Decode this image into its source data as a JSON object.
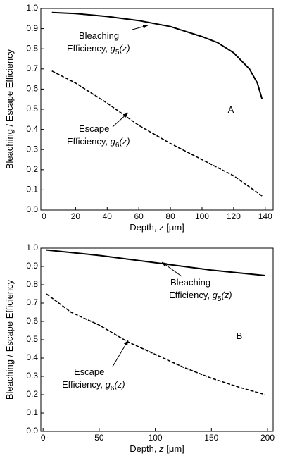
{
  "chart_data": [
    {
      "type": "line",
      "panel_label": "A",
      "x_label": [
        "Depth, ",
        "z",
        " [μm]"
      ],
      "y_label": "Bleaching / Escape Efficiency",
      "xlim": [
        -2,
        145
      ],
      "ylim": [
        0,
        1
      ],
      "xticks": [
        0,
        20,
        40,
        60,
        80,
        100,
        120,
        140
      ],
      "yticks": [
        {
          "value": 0,
          "label": "0.0"
        },
        0.1,
        0.2,
        0.3,
        0.4,
        0.5,
        0.6,
        0.7,
        0.8,
        0.9,
        {
          "value": 1,
          "label": "1.0"
        }
      ],
      "series": [
        {
          "annotation": [
            "Bleaching",
            "Efficiency, ",
            "g",
            "5",
            "(z)"
          ],
          "color": "#000000",
          "dash": "solid",
          "x": [
            5,
            20,
            40,
            60,
            80,
            100,
            110,
            120,
            130,
            135,
            138
          ],
          "values": [
            0.98,
            0.975,
            0.96,
            0.94,
            0.91,
            0.86,
            0.83,
            0.78,
            0.7,
            0.63,
            0.55
          ]
        },
        {
          "annotation": [
            "Escape",
            "Efficiency, ",
            "g",
            "6",
            "(z)"
          ],
          "color": "#000000",
          "dash": "dashed",
          "x": [
            5,
            20,
            40,
            60,
            80,
            100,
            120,
            138
          ],
          "values": [
            0.69,
            0.63,
            0.53,
            0.42,
            0.33,
            0.25,
            0.17,
            0.07
          ]
        }
      ]
    },
    {
      "type": "line",
      "panel_label": "B",
      "x_label": [
        "Depth, ",
        "z",
        " [μm]"
      ],
      "y_label": "Bleaching / Escape Efficiency",
      "xlim": [
        -2,
        205
      ],
      "ylim": [
        0,
        1
      ],
      "xticks": [
        0,
        50,
        100,
        150,
        200
      ],
      "yticks": [
        {
          "value": 0,
          "label": "0.0"
        },
        0.1,
        0.2,
        0.3,
        0.4,
        0.5,
        0.6,
        0.7,
        0.8,
        0.9,
        {
          "value": 1,
          "label": "1.0"
        }
      ],
      "series": [
        {
          "annotation": [
            "Bleaching",
            "Efficiency, ",
            "g",
            "5",
            "(z)"
          ],
          "color": "#000000",
          "dash": "solid",
          "x": [
            3,
            50,
            100,
            150,
            198
          ],
          "values": [
            0.99,
            0.96,
            0.92,
            0.88,
            0.85
          ]
        },
        {
          "annotation": [
            "Escape",
            "Efficiency, ",
            "g",
            "6",
            "(z)"
          ],
          "color": "#000000",
          "dash": "dashed",
          "x": [
            3,
            25,
            50,
            75,
            100,
            125,
            150,
            175,
            198
          ],
          "values": [
            0.75,
            0.65,
            0.58,
            0.49,
            0.42,
            0.35,
            0.29,
            0.24,
            0.2
          ]
        }
      ]
    }
  ]
}
